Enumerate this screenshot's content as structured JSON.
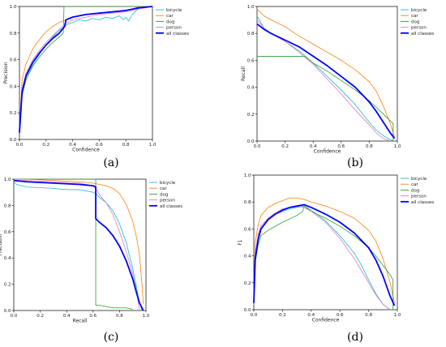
{
  "colors": {
    "bicycle": "#17becf",
    "car": "#ff7f0e",
    "dog": "#2ca02c",
    "person": "#e377c2",
    "all classes": "#0000ff"
  },
  "chart_data": [
    {
      "id": "a",
      "type": "line",
      "caption": "(a)",
      "xlabel": "Confidence",
      "ylabel": "Precision",
      "xlim": [
        0,
        1
      ],
      "ylim": [
        0,
        1
      ],
      "xticks": [
        0.0,
        0.2,
        0.4,
        0.6,
        0.8,
        1.0
      ],
      "yticks": [
        0.0,
        0.2,
        0.4,
        0.6,
        0.8,
        1.0
      ],
      "legend": "top-right",
      "grid": false,
      "series": [
        {
          "name": "bicycle",
          "x": [
            0,
            0.02,
            0.05,
            0.1,
            0.15,
            0.2,
            0.25,
            0.3,
            0.35,
            0.4,
            0.45,
            0.5,
            0.55,
            0.6,
            0.65,
            0.7,
            0.75,
            0.78,
            0.8,
            0.82,
            0.85,
            0.88,
            0.9,
            0.95,
            1.0
          ],
          "y": [
            0.05,
            0.35,
            0.47,
            0.56,
            0.64,
            0.71,
            0.77,
            0.82,
            0.86,
            0.88,
            0.9,
            0.89,
            0.91,
            0.9,
            0.92,
            0.91,
            0.93,
            0.9,
            0.92,
            0.89,
            0.94,
            0.97,
            1.0,
            1.0,
            1.0
          ]
        },
        {
          "name": "car",
          "x": [
            0,
            0.02,
            0.05,
            0.1,
            0.15,
            0.2,
            0.25,
            0.3,
            0.35,
            0.4,
            0.5,
            0.6,
            0.7,
            0.8,
            0.85,
            0.9,
            1.0
          ],
          "y": [
            0.1,
            0.45,
            0.57,
            0.68,
            0.75,
            0.81,
            0.85,
            0.88,
            0.9,
            0.92,
            0.94,
            0.95,
            0.96,
            0.97,
            0.98,
            1.0,
            1.0
          ]
        },
        {
          "name": "dog",
          "x": [
            0,
            0.02,
            0.05,
            0.1,
            0.15,
            0.2,
            0.25,
            0.3,
            0.33,
            0.335,
            0.34,
            0.5,
            0.7,
            0.9,
            1.0
          ],
          "y": [
            0.05,
            0.33,
            0.45,
            0.55,
            0.62,
            0.68,
            0.73,
            0.77,
            0.8,
            1.0,
            1.0,
            1.0,
            1.0,
            1.0,
            1.0
          ]
        },
        {
          "name": "person",
          "x": [
            0,
            0.02,
            0.05,
            0.1,
            0.15,
            0.2,
            0.25,
            0.3,
            0.35,
            0.4,
            0.5,
            0.6,
            0.7,
            0.8,
            0.9,
            1.0
          ],
          "y": [
            0.08,
            0.38,
            0.5,
            0.6,
            0.67,
            0.73,
            0.78,
            0.83,
            0.87,
            0.9,
            0.92,
            0.94,
            0.95,
            0.96,
            0.98,
            1.0
          ]
        },
        {
          "name": "all classes",
          "x": [
            0,
            0.02,
            0.05,
            0.1,
            0.15,
            0.2,
            0.25,
            0.3,
            0.34,
            0.35,
            0.4,
            0.5,
            0.6,
            0.7,
            0.8,
            0.9,
            1.0
          ],
          "y": [
            0.05,
            0.36,
            0.48,
            0.58,
            0.65,
            0.71,
            0.76,
            0.8,
            0.85,
            0.9,
            0.92,
            0.94,
            0.95,
            0.96,
            0.97,
            0.99,
            1.0
          ]
        }
      ]
    },
    {
      "id": "b",
      "type": "line",
      "caption": "(b)",
      "xlabel": "Confidence",
      "ylabel": "Recall",
      "xlim": [
        0,
        1
      ],
      "ylim": [
        0,
        1
      ],
      "xticks": [
        0.0,
        0.2,
        0.4,
        0.6,
        0.8,
        1.0
      ],
      "yticks": [
        0.0,
        0.2,
        0.4,
        0.6,
        0.8,
        1.0
      ],
      "legend": "top-right",
      "grid": false,
      "series": [
        {
          "name": "bicycle",
          "x": [
            0,
            0.05,
            0.1,
            0.2,
            0.3,
            0.4,
            0.5,
            0.6,
            0.7,
            0.8,
            0.85,
            0.9,
            0.95,
            0.98
          ],
          "y": [
            0.93,
            0.84,
            0.8,
            0.74,
            0.67,
            0.58,
            0.48,
            0.38,
            0.27,
            0.14,
            0.08,
            0.04,
            0.01,
            0.0
          ]
        },
        {
          "name": "car",
          "x": [
            0,
            0.05,
            0.1,
            0.2,
            0.3,
            0.4,
            0.5,
            0.6,
            0.7,
            0.8,
            0.85,
            0.9,
            0.95,
            0.98
          ],
          "y": [
            0.98,
            0.93,
            0.9,
            0.85,
            0.78,
            0.72,
            0.66,
            0.6,
            0.53,
            0.44,
            0.37,
            0.26,
            0.13,
            0.03
          ]
        },
        {
          "name": "dog",
          "x": [
            0,
            0.01,
            0.1,
            0.2,
            0.34,
            0.4,
            0.5,
            0.6,
            0.7,
            0.8,
            0.85,
            0.9,
            0.97,
            0.97
          ],
          "y": [
            0.63,
            0.63,
            0.63,
            0.63,
            0.63,
            0.58,
            0.52,
            0.45,
            0.38,
            0.3,
            0.25,
            0.2,
            0.13,
            0.0
          ]
        },
        {
          "name": "person",
          "x": [
            0,
            0.05,
            0.1,
            0.2,
            0.3,
            0.4,
            0.5,
            0.6,
            0.7,
            0.8,
            0.85,
            0.9,
            0.95
          ],
          "y": [
            0.9,
            0.84,
            0.8,
            0.74,
            0.66,
            0.57,
            0.46,
            0.35,
            0.23,
            0.12,
            0.06,
            0.02,
            0.0
          ]
        },
        {
          "name": "all classes",
          "x": [
            0,
            0.05,
            0.1,
            0.2,
            0.3,
            0.4,
            0.5,
            0.6,
            0.7,
            0.8,
            0.85,
            0.9,
            0.95,
            0.98
          ],
          "y": [
            0.87,
            0.83,
            0.8,
            0.75,
            0.7,
            0.63,
            0.56,
            0.48,
            0.4,
            0.29,
            0.22,
            0.14,
            0.06,
            0.02
          ]
        }
      ]
    },
    {
      "id": "c",
      "type": "line",
      "caption": "(c)",
      "xlabel": "Recall",
      "ylabel": "Precision",
      "xlim": [
        0,
        1
      ],
      "ylim": [
        0,
        1
      ],
      "xticks": [
        0.0,
        0.2,
        0.4,
        0.6,
        0.8,
        1.0
      ],
      "yticks": [
        0.0,
        0.2,
        0.4,
        0.6,
        0.8,
        1.0
      ],
      "legend": "top-right",
      "grid": false,
      "series": [
        {
          "name": "bicycle",
          "x": [
            0,
            0.02,
            0.1,
            0.3,
            0.4,
            0.5,
            0.6,
            0.62,
            0.65,
            0.7,
            0.75,
            0.8,
            0.85,
            0.9,
            0.93,
            0.95,
            0.97
          ],
          "y": [
            0.98,
            0.96,
            0.94,
            0.93,
            0.92,
            0.92,
            0.9,
            0.89,
            0.86,
            0.82,
            0.76,
            0.66,
            0.52,
            0.32,
            0.17,
            0.06,
            0.0
          ]
        },
        {
          "name": "car",
          "x": [
            0,
            0.1,
            0.3,
            0.5,
            0.6,
            0.7,
            0.75,
            0.8,
            0.85,
            0.9,
            0.93,
            0.95,
            0.97,
            0.98
          ],
          "y": [
            1.0,
            1.0,
            0.99,
            0.98,
            0.97,
            0.95,
            0.93,
            0.89,
            0.81,
            0.68,
            0.55,
            0.43,
            0.2,
            0.05
          ]
        },
        {
          "name": "dog",
          "x": [
            0,
            0.2,
            0.4,
            0.6,
            0.62,
            0.62,
            0.65,
            0.7,
            0.75,
            0.85,
            0.9
          ],
          "y": [
            1.0,
            1.0,
            1.0,
            1.0,
            1.0,
            0.04,
            0.04,
            0.03,
            0.02,
            0.02,
            0.01
          ]
        },
        {
          "name": "person",
          "x": [
            0,
            0.1,
            0.3,
            0.5,
            0.6,
            0.62,
            0.65,
            0.7,
            0.75,
            0.8,
            0.85,
            0.9,
            0.93,
            0.95
          ],
          "y": [
            0.99,
            0.99,
            0.98,
            0.97,
            0.95,
            0.93,
            0.88,
            0.82,
            0.73,
            0.6,
            0.45,
            0.28,
            0.14,
            0.0
          ]
        },
        {
          "name": "all classes",
          "x": [
            0,
            0.1,
            0.3,
            0.5,
            0.6,
            0.62,
            0.62,
            0.65,
            0.7,
            0.75,
            0.8,
            0.85,
            0.9,
            0.93,
            0.95,
            0.98
          ],
          "y": [
            0.99,
            0.98,
            0.97,
            0.96,
            0.95,
            0.94,
            0.7,
            0.67,
            0.63,
            0.57,
            0.49,
            0.38,
            0.24,
            0.13,
            0.06,
            0.0
          ]
        }
      ]
    },
    {
      "id": "d",
      "type": "line",
      "caption": "(d)",
      "xlabel": "Confidence",
      "ylabel": "F1",
      "xlim": [
        0,
        1
      ],
      "ylim": [
        0,
        1
      ],
      "xticks": [
        0.0,
        0.2,
        0.4,
        0.6,
        0.8,
        1.0
      ],
      "yticks": [
        0.0,
        0.2,
        0.4,
        0.6,
        0.8,
        1.0
      ],
      "legend": "top-right",
      "grid": false,
      "series": [
        {
          "name": "bicycle",
          "x": [
            0,
            0.01,
            0.03,
            0.05,
            0.1,
            0.15,
            0.2,
            0.25,
            0.3,
            0.35,
            0.4,
            0.5,
            0.6,
            0.7,
            0.75,
            0.8,
            0.85,
            0.9,
            0.95
          ],
          "y": [
            0.05,
            0.4,
            0.55,
            0.62,
            0.68,
            0.71,
            0.73,
            0.75,
            0.76,
            0.77,
            0.74,
            0.66,
            0.55,
            0.42,
            0.33,
            0.22,
            0.12,
            0.04,
            0.0
          ]
        },
        {
          "name": "car",
          "x": [
            0,
            0.01,
            0.03,
            0.05,
            0.1,
            0.15,
            0.2,
            0.25,
            0.3,
            0.35,
            0.4,
            0.5,
            0.6,
            0.7,
            0.8,
            0.85,
            0.9,
            0.95,
            0.98
          ],
          "y": [
            0.1,
            0.5,
            0.63,
            0.7,
            0.76,
            0.79,
            0.81,
            0.83,
            0.83,
            0.82,
            0.8,
            0.77,
            0.73,
            0.68,
            0.59,
            0.51,
            0.38,
            0.2,
            0.05
          ]
        },
        {
          "name": "dog",
          "x": [
            0,
            0.01,
            0.03,
            0.05,
            0.1,
            0.2,
            0.3,
            0.34,
            0.35,
            0.4,
            0.5,
            0.6,
            0.7,
            0.8,
            0.85,
            0.9,
            0.95,
            0.97,
            0.97
          ],
          "y": [
            0.05,
            0.35,
            0.48,
            0.55,
            0.59,
            0.65,
            0.7,
            0.73,
            0.77,
            0.73,
            0.68,
            0.62,
            0.55,
            0.46,
            0.4,
            0.33,
            0.26,
            0.22,
            0.0
          ]
        },
        {
          "name": "person",
          "x": [
            0,
            0.01,
            0.03,
            0.05,
            0.1,
            0.15,
            0.2,
            0.25,
            0.3,
            0.35,
            0.4,
            0.5,
            0.6,
            0.7,
            0.75,
            0.8,
            0.85,
            0.9,
            0.95
          ],
          "y": [
            0.08,
            0.42,
            0.56,
            0.62,
            0.68,
            0.72,
            0.75,
            0.76,
            0.77,
            0.76,
            0.73,
            0.65,
            0.53,
            0.38,
            0.29,
            0.2,
            0.11,
            0.04,
            0.0
          ]
        },
        {
          "name": "all classes",
          "x": [
            0,
            0.01,
            0.03,
            0.05,
            0.1,
            0.15,
            0.2,
            0.25,
            0.3,
            0.35,
            0.4,
            0.5,
            0.6,
            0.7,
            0.8,
            0.85,
            0.9,
            0.95,
            0.98
          ],
          "y": [
            0.05,
            0.38,
            0.52,
            0.6,
            0.67,
            0.71,
            0.74,
            0.76,
            0.77,
            0.78,
            0.76,
            0.71,
            0.65,
            0.57,
            0.46,
            0.37,
            0.25,
            0.1,
            0.03
          ]
        }
      ]
    }
  ]
}
